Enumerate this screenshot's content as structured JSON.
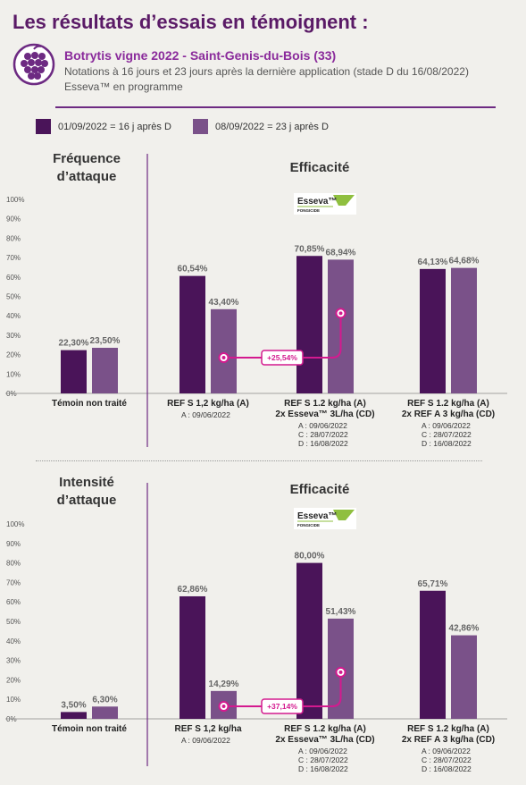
{
  "header": {
    "title": "Les résultats d’essais en témoignent :",
    "trial_title": "Botrytis vigne 2022 - Saint-Genis-du-Bois (33)",
    "trial_note": "Notations à 16 jours et 23 jours après la dernière application (stade D du 16/08/2022)",
    "trial_program": "Esseva™ en programme",
    "icon": "grape-bunch-icon"
  },
  "legend": [
    {
      "label": "01/09/2022 = 16 j après D",
      "color": "#4a1459"
    },
    {
      "label": "08/09/2022 = 23 j après D",
      "color": "#7a5189"
    }
  ],
  "logo": {
    "brand": "Esseva",
    "mark": "™",
    "sub": "FONGICIDE"
  },
  "colors": {
    "accent": "#d41a8f",
    "dark": "#4a1459",
    "light": "#7a5189"
  },
  "chart_data": [
    {
      "type": "bar",
      "left_title": [
        "Fréquence",
        "d’attaque"
      ],
      "right_title": "Efficacité",
      "ylim": [
        0,
        100
      ],
      "yticks": [
        "0%",
        "10%",
        "20%",
        "30%",
        "40%",
        "50%",
        "60%",
        "70%",
        "80%",
        "90%",
        "100%"
      ],
      "series": [
        {
          "name": "01/09/2022 = 16 j après D",
          "values": [
            22.3,
            60.54,
            70.85,
            64.13
          ]
        },
        {
          "name": "08/09/2022 = 23 j après D",
          "values": [
            23.5,
            43.4,
            68.94,
            64.68
          ]
        }
      ],
      "value_labels": [
        [
          "22,30%",
          "23,50%"
        ],
        [
          "60,54%",
          "43,40%"
        ],
        [
          "70,85%",
          "68,94%"
        ],
        [
          "64,13%",
          "64,68%"
        ]
      ],
      "categories": [
        {
          "label": [
            "Témoin non traité"
          ],
          "dates": []
        },
        {
          "label": [
            "REF S 1,2 kg/ha (A)"
          ],
          "dates": [
            "A : 09/06/2022"
          ]
        },
        {
          "label": [
            "REF S 1.2 kg/ha (A)",
            "2x Esseva™ 3L/ha (CD)"
          ],
          "dates": [
            "A : 09/06/2022",
            "C : 28/07/2022",
            "D : 16/08/2022"
          ]
        },
        {
          "label": [
            "REF S 1.2 kg/ha (A)",
            "2x REF A 3 kg/ha (CD)"
          ],
          "dates": [
            "A : 09/06/2022",
            "C : 28/07/2022",
            "D : 16/08/2022"
          ]
        }
      ],
      "annotation": "+25,54%"
    },
    {
      "type": "bar",
      "left_title": [
        "Intensité",
        "d’attaque"
      ],
      "right_title": "Efficacité",
      "ylim": [
        0,
        100
      ],
      "yticks": [
        "0%",
        "10%",
        "20%",
        "30%",
        "40%",
        "50%",
        "60%",
        "70%",
        "80%",
        "90%",
        "100%"
      ],
      "series": [
        {
          "name": "01/09/2022 = 16 j après D",
          "values": [
            3.5,
            62.86,
            80.0,
            65.71
          ]
        },
        {
          "name": "08/09/2022 = 23 j après D",
          "values": [
            6.3,
            14.29,
            51.43,
            42.86
          ]
        }
      ],
      "value_labels": [
        [
          "3,50%",
          "6,30%"
        ],
        [
          "62,86%",
          "14,29%"
        ],
        [
          "80,00%",
          "51,43%"
        ],
        [
          "65,71%",
          "42,86%"
        ]
      ],
      "categories": [
        {
          "label": [
            "Témoin non traité"
          ],
          "dates": []
        },
        {
          "label": [
            "REF S 1,2 kg/ha"
          ],
          "dates": [
            "A : 09/06/2022"
          ]
        },
        {
          "label": [
            "REF S 1.2 kg/ha (A)",
            "2x Esseva™ 3L/ha (CD)"
          ],
          "dates": [
            "A : 09/06/2022",
            "C : 28/07/2022",
            "D : 16/08/2022"
          ]
        },
        {
          "label": [
            "REF S 1.2 kg/ha (A)",
            "2x REF A 3 kg/ha (CD)"
          ],
          "dates": [
            "A : 09/06/2022",
            "C : 28/07/2022",
            "D : 16/08/2022"
          ]
        }
      ],
      "annotation": "+37,14%"
    }
  ]
}
